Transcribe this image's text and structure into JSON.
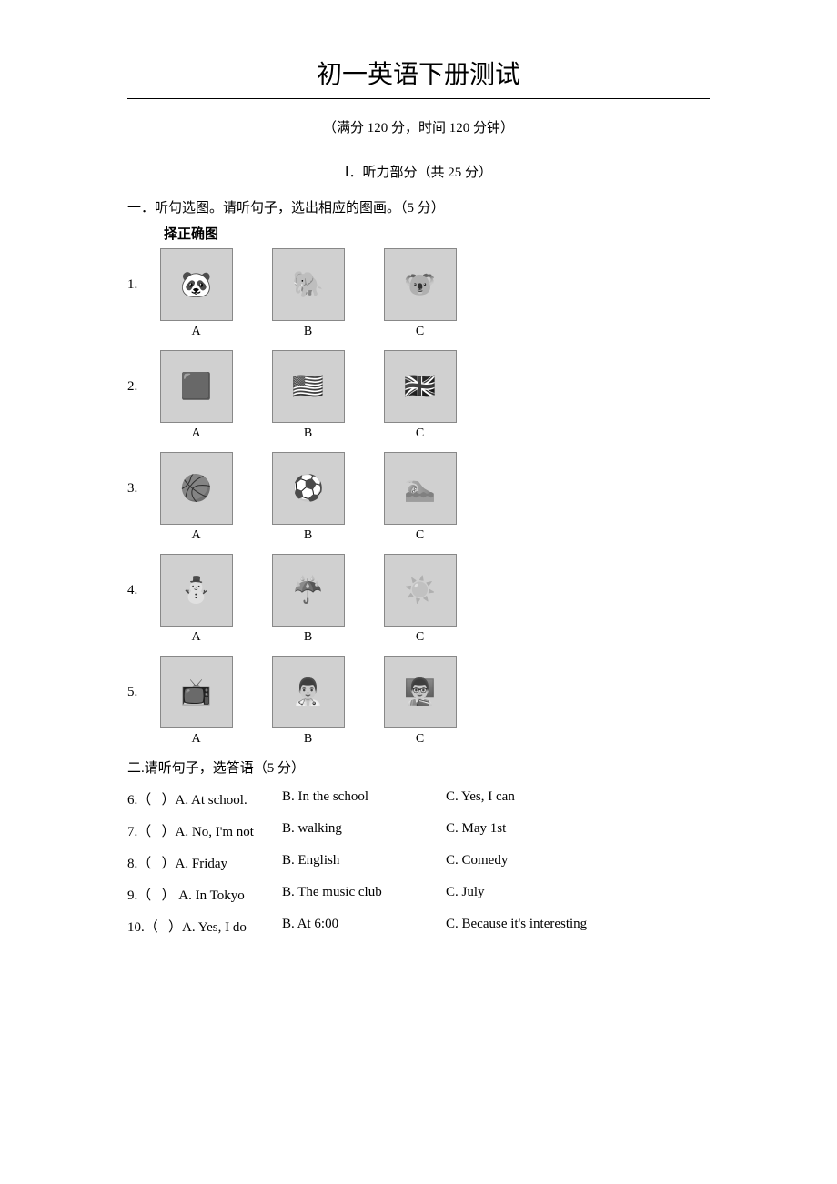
{
  "title": "初一英语下册测试",
  "subtitle": "（满分 120 分，时间 120 分钟）",
  "section1_title": "Ⅰ．听力部分（共 25 分）",
  "instruction1": "一．听句选图。请听句子，选出相应的图画。（5 分）",
  "image_caption": "择正确图",
  "labels": {
    "a": "A",
    "b": "B",
    "c": "C"
  },
  "rows": [
    {
      "num": "1.",
      "icons": [
        "🐼",
        "🐘",
        "🐨"
      ]
    },
    {
      "num": "2.",
      "icons": [
        "🟥",
        "🇺🇸",
        "🇬🇧"
      ]
    },
    {
      "num": "3.",
      "icons": [
        "🏀",
        "⚽",
        "🏊"
      ]
    },
    {
      "num": "4.",
      "icons": [
        "⛄",
        "☔",
        "☀️"
      ]
    },
    {
      "num": "5.",
      "icons": [
        "📺",
        "👨‍⚕️",
        "👨‍🏫"
      ]
    }
  ],
  "instruction2": "二.请听句子，选答语（5 分）",
  "questions": [
    {
      "num": "6.",
      "a": "A. At school.",
      "b": "B. In the school",
      "c": "C. Yes, I can"
    },
    {
      "num": "7.",
      "a": "A. No, I'm not",
      "b": "B. walking",
      "c": "C. May 1st"
    },
    {
      "num": "8.",
      "a": "A. Friday",
      "b": "B. English",
      "c": "C. Comedy"
    },
    {
      "num": "9.",
      "a": " A. In Tokyo",
      "b": "B. The music club",
      "c": "C. July"
    },
    {
      "num": "10.",
      "a": "A. Yes, I do",
      "b": "B. At 6:00",
      "c": "C. Because it's interesting"
    }
  ],
  "paren_open": "（",
  "paren_close": "）"
}
